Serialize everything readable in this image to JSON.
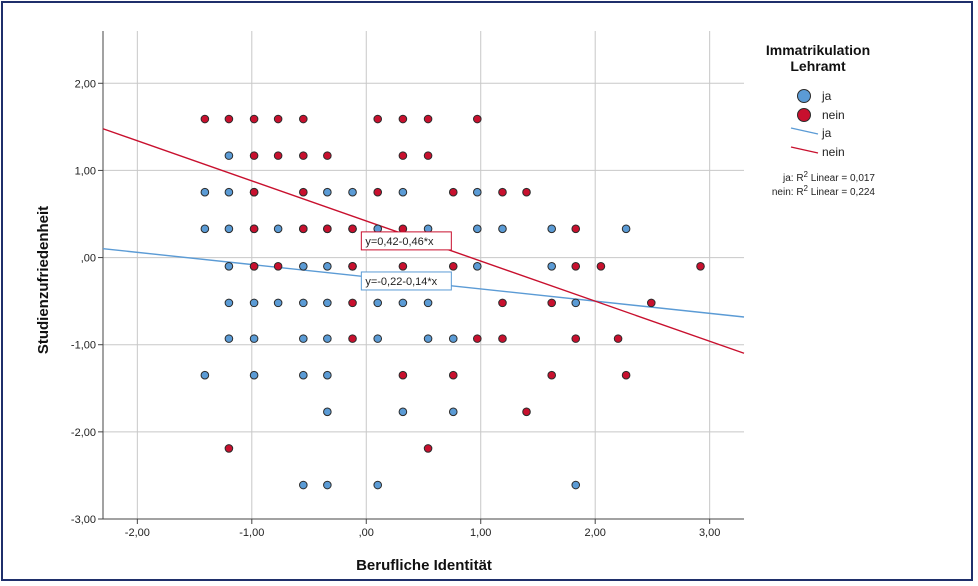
{
  "chart_data": {
    "type": "scatter",
    "xlabel": "Berufliche Identität",
    "ylabel": "Studienzufriedenheit",
    "xlim": [
      -2.3,
      3.3
    ],
    "ylim": [
      -3.0,
      2.6
    ],
    "x_ticks": [
      -2,
      -1,
      0,
      1,
      2,
      3
    ],
    "x_tick_labels": [
      "-2,00",
      "-1,00",
      ",00",
      "1,00",
      "2,00",
      "3,00"
    ],
    "y_ticks": [
      -3,
      -2,
      -1,
      0,
      1,
      2
    ],
    "y_tick_labels": [
      "-3,00",
      "-2,00",
      "-1,00",
      ",00",
      "1,00",
      "2,00"
    ],
    "grid": true,
    "legend": {
      "title_lines": [
        "Immatrikulation",
        "Lehramt"
      ],
      "placement": "right",
      "marker_entries": [
        "ja",
        "nein"
      ],
      "line_entries": [
        "ja",
        "nein"
      ],
      "r2_labels": [
        {
          "prefix": "ja: R",
          "sup": "2",
          "suffix": " Linear = 0,017"
        },
        {
          "prefix": "nein: R",
          "sup": "2",
          "suffix": " Linear = 0,224"
        }
      ]
    },
    "series": [
      {
        "name": "ja",
        "color": "#5b9bd5",
        "fit": {
          "intercept": -0.22,
          "slope": -0.14,
          "label": "y=-0,22-0,14*x"
        },
        "points": [
          [
            -1.41,
            0.75
          ],
          [
            -1.41,
            0.33
          ],
          [
            -1.41,
            -1.35
          ],
          [
            -1.2,
            1.17
          ],
          [
            -1.2,
            0.75
          ],
          [
            -1.2,
            0.33
          ],
          [
            -1.2,
            -0.1
          ],
          [
            -1.2,
            -0.52
          ],
          [
            -1.2,
            -0.93
          ],
          [
            -0.98,
            0.75
          ],
          [
            -0.98,
            0.33
          ],
          [
            -0.98,
            -0.1
          ],
          [
            -0.98,
            -0.52
          ],
          [
            -0.98,
            -0.93
          ],
          [
            -0.98,
            -1.35
          ],
          [
            -0.77,
            0.33
          ],
          [
            -0.77,
            -0.52
          ],
          [
            -0.55,
            0.33
          ],
          [
            -0.55,
            -0.1
          ],
          [
            -0.55,
            -0.52
          ],
          [
            -0.55,
            -0.93
          ],
          [
            -0.55,
            -1.35
          ],
          [
            -0.55,
            -2.61
          ],
          [
            -0.34,
            0.75
          ],
          [
            -0.34,
            0.33
          ],
          [
            -0.34,
            -0.1
          ],
          [
            -0.34,
            -0.52
          ],
          [
            -0.34,
            -0.93
          ],
          [
            -0.34,
            -1.35
          ],
          [
            -0.34,
            -1.77
          ],
          [
            -0.34,
            -2.61
          ],
          [
            -0.12,
            0.75
          ],
          [
            -0.12,
            0.33
          ],
          [
            -0.12,
            -0.1
          ],
          [
            0.1,
            0.33
          ],
          [
            0.1,
            -0.52
          ],
          [
            0.1,
            -0.93
          ],
          [
            0.1,
            -2.61
          ],
          [
            0.32,
            0.75
          ],
          [
            0.32,
            -0.52
          ],
          [
            0.32,
            -1.77
          ],
          [
            0.54,
            0.33
          ],
          [
            0.54,
            -0.52
          ],
          [
            0.54,
            -0.93
          ],
          [
            0.76,
            -0.93
          ],
          [
            0.76,
            -1.77
          ],
          [
            0.97,
            0.75
          ],
          [
            0.97,
            0.33
          ],
          [
            0.97,
            -0.1
          ],
          [
            1.19,
            0.33
          ],
          [
            1.62,
            0.33
          ],
          [
            1.62,
            -0.1
          ],
          [
            1.83,
            -0.52
          ],
          [
            1.83,
            -2.61
          ],
          [
            2.27,
            0.33
          ]
        ]
      },
      {
        "name": "nein",
        "color": "#c8102e",
        "fit": {
          "intercept": 0.42,
          "slope": -0.46,
          "label": "y=0,42-0,46*x"
        },
        "points": [
          [
            -1.41,
            1.59
          ],
          [
            -1.2,
            1.59
          ],
          [
            -1.2,
            -2.19
          ],
          [
            -0.98,
            1.59
          ],
          [
            -0.98,
            1.17
          ],
          [
            -0.98,
            0.75
          ],
          [
            -0.98,
            0.33
          ],
          [
            -0.98,
            -0.1
          ],
          [
            -0.77,
            1.59
          ],
          [
            -0.77,
            1.17
          ],
          [
            -0.77,
            -0.1
          ],
          [
            -0.55,
            1.59
          ],
          [
            -0.55,
            1.17
          ],
          [
            -0.55,
            0.75
          ],
          [
            -0.55,
            0.33
          ],
          [
            -0.34,
            1.17
          ],
          [
            -0.34,
            0.33
          ],
          [
            -0.12,
            0.33
          ],
          [
            -0.12,
            -0.1
          ],
          [
            -0.12,
            -0.52
          ],
          [
            -0.12,
            -0.93
          ],
          [
            0.1,
            1.59
          ],
          [
            0.1,
            0.75
          ],
          [
            0.32,
            1.59
          ],
          [
            0.32,
            1.17
          ],
          [
            0.32,
            0.33
          ],
          [
            0.32,
            -0.1
          ],
          [
            0.32,
            -1.35
          ],
          [
            0.54,
            1.59
          ],
          [
            0.54,
            1.17
          ],
          [
            0.54,
            -2.19
          ],
          [
            0.76,
            0.75
          ],
          [
            0.76,
            -0.1
          ],
          [
            0.76,
            -1.35
          ],
          [
            0.97,
            1.59
          ],
          [
            0.97,
            -0.93
          ],
          [
            1.19,
            0.75
          ],
          [
            1.19,
            -0.52
          ],
          [
            1.19,
            -0.93
          ],
          [
            1.4,
            0.75
          ],
          [
            1.4,
            -1.77
          ],
          [
            1.62,
            -0.52
          ],
          [
            1.62,
            -1.35
          ],
          [
            1.83,
            0.33
          ],
          [
            1.83,
            -0.1
          ],
          [
            1.83,
            -0.93
          ],
          [
            2.05,
            -0.1
          ],
          [
            2.2,
            -0.93
          ],
          [
            2.27,
            -1.35
          ],
          [
            2.49,
            -0.52
          ],
          [
            2.92,
            -0.1
          ]
        ]
      }
    ]
  }
}
